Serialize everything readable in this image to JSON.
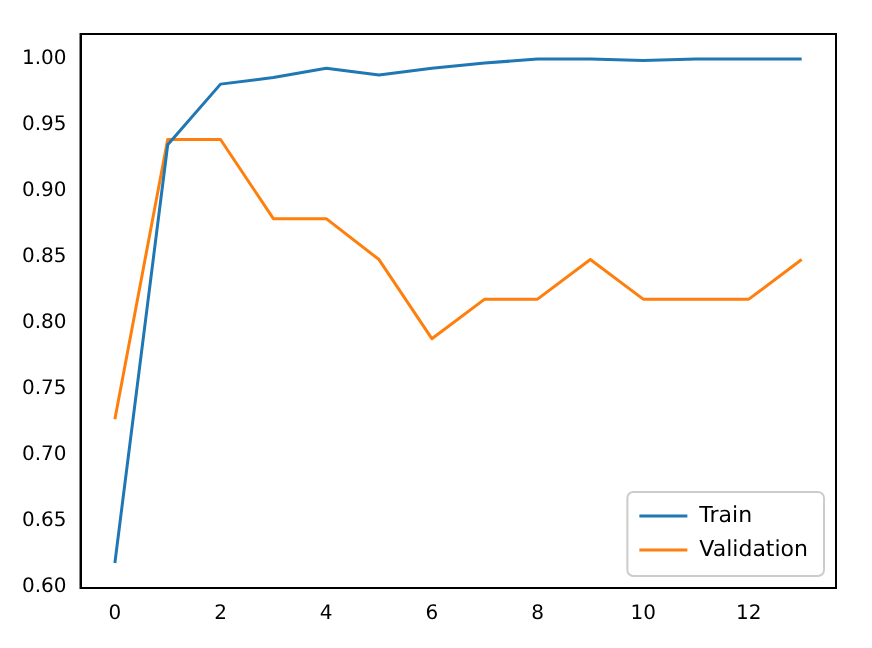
{
  "chart_data": {
    "type": "line",
    "x": [
      0,
      1,
      2,
      3,
      4,
      5,
      6,
      7,
      8,
      9,
      10,
      11,
      12,
      13
    ],
    "series": [
      {
        "name": "Train",
        "color": "#1f77b4",
        "values": [
          0.618,
          0.935,
          0.981,
          0.986,
          0.993,
          0.988,
          0.993,
          0.997,
          1.0,
          1.0,
          0.999,
          1.0,
          1.0,
          1.0
        ]
      },
      {
        "name": "Validation",
        "color": "#ff7f0e",
        "values": [
          0.727,
          0.939,
          0.939,
          0.879,
          0.879,
          0.848,
          0.788,
          0.818,
          0.818,
          0.848,
          0.818,
          0.818,
          0.818,
          0.848
        ]
      }
    ],
    "xlim": [
      -0.65,
      13.65
    ],
    "xticks": [
      0,
      2,
      4,
      6,
      8,
      10,
      12
    ],
    "ylim": [
      0.599,
      1.019
    ],
    "yticks": [
      {
        "value": 0.6,
        "label": "0.60"
      },
      {
        "value": 0.65,
        "label": "0.65"
      },
      {
        "value": 0.7,
        "label": "0.70"
      },
      {
        "value": 0.75,
        "label": "0.75"
      },
      {
        "value": 0.8,
        "label": "0.80"
      },
      {
        "value": 0.85,
        "label": "0.85"
      },
      {
        "value": 0.9,
        "label": "0.90"
      },
      {
        "value": 0.95,
        "label": "0.95"
      },
      {
        "value": 1.0,
        "label": "1.00"
      }
    ],
    "legend": "bottom right"
  }
}
